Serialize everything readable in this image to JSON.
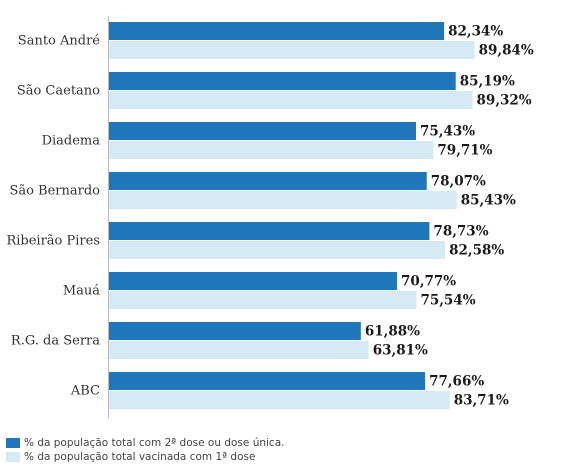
{
  "chart_data": {
    "type": "bar",
    "orientation": "horizontal",
    "categories": [
      "Santo André",
      "São Caetano",
      "Diadema",
      "São Bernardo",
      "Ribeirão Pires",
      "Mauá",
      "R.G. da Serra",
      "ABC"
    ],
    "series": [
      {
        "name": "% da população total com 2ª dose ou dose única.",
        "color": "#1f77b9",
        "values": [
          82.34,
          85.19,
          75.43,
          78.07,
          78.73,
          70.77,
          61.88,
          77.66
        ],
        "labels": [
          "82,34%",
          "85,19%",
          "75,43%",
          "78,07%",
          "78,73%",
          "70,77%",
          "61,88%",
          "77,66%"
        ]
      },
      {
        "name": "% da população total vacinada com 1ª dose",
        "color": "#d6eaf5",
        "values": [
          89.84,
          89.32,
          79.71,
          85.43,
          82.58,
          75.54,
          63.81,
          83.71
        ],
        "labels": [
          "89,84%",
          "89,32%",
          "79,71%",
          "85,43%",
          "82,58%",
          "75,54%",
          "63,81%",
          "83,71%"
        ]
      }
    ],
    "xlim": [
      0,
      100
    ],
    "grid": false,
    "legend_position": "bottom-left"
  }
}
